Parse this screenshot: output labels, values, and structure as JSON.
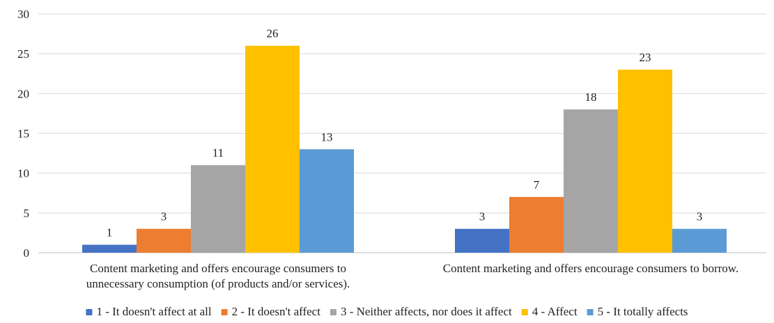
{
  "chart_data": {
    "type": "bar",
    "title": "",
    "xlabel": "",
    "ylabel": "",
    "ylim": [
      0,
      30
    ],
    "yticks": [
      0,
      5,
      10,
      15,
      20,
      25,
      30
    ],
    "grid": true,
    "legend_position": "bottom",
    "categories": [
      [
        "Content marketing and offers encourage consumers to",
        "unnecessary consumption (of products and/or services)."
      ],
      [
        "Content marketing and offers encourage consumers to borrow."
      ]
    ],
    "series": [
      {
        "name": "1 - It doesn't affect at all",
        "color": "#4472c4",
        "values": [
          1,
          3
        ]
      },
      {
        "name": "2 - It doesn't affect",
        "color": "#ed7d31",
        "values": [
          3,
          7
        ]
      },
      {
        "name": "3 - Neither affects, nor does it affect",
        "color": "#a5a5a5",
        "values": [
          11,
          18
        ]
      },
      {
        "name": "4 - Affect",
        "color": "#ffc000",
        "values": [
          26,
          23
        ]
      },
      {
        "name": "5 - It totally affects",
        "color": "#5b9bd5",
        "values": [
          13,
          3
        ]
      }
    ]
  }
}
